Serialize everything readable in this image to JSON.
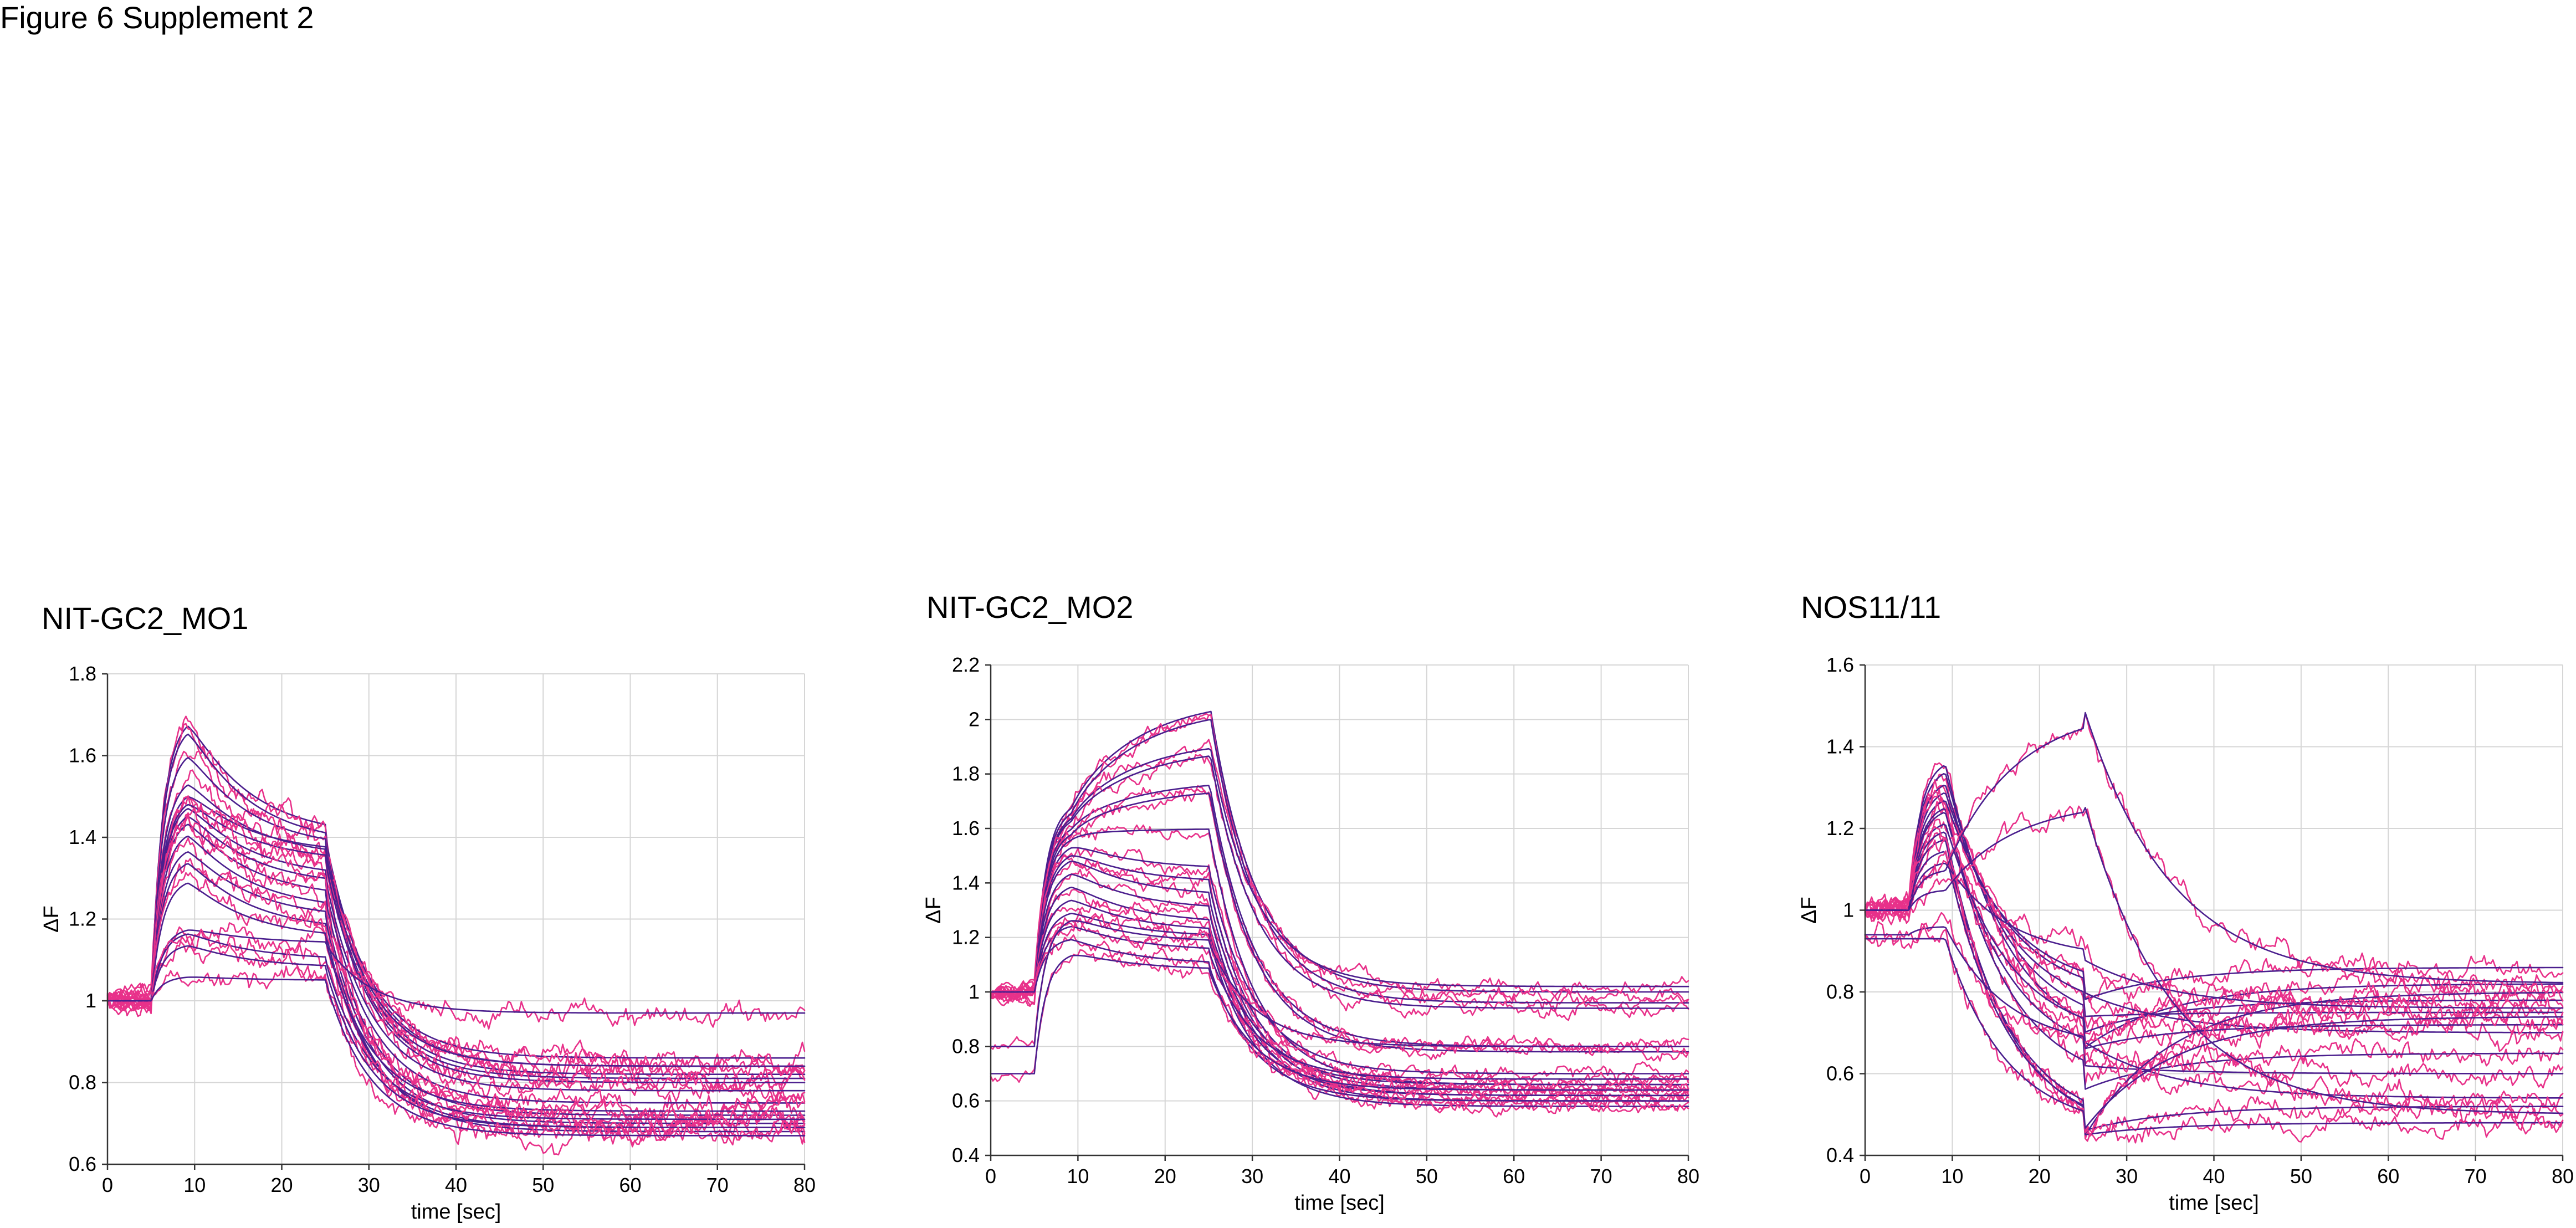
{
  "figure": {
    "title": "Figure 6 Supplement 2"
  },
  "colors": {
    "raw_trace": "#e8318a",
    "fit_trace": "#4b1f8e",
    "grid": "#d6d6d6",
    "axis": "#333333"
  },
  "chart_data": [
    {
      "type": "line",
      "title": "NIT-GC2_MO1",
      "xlabel": "time [sec]",
      "ylabel": "ΔF",
      "xlim": [
        0,
        80
      ],
      "ylim": [
        0.6,
        1.8
      ],
      "x_ticks": [
        0,
        10,
        20,
        30,
        40,
        50,
        60,
        70,
        80
      ],
      "y_ticks": [
        0.6,
        0.8,
        1,
        1.2,
        1.4,
        1.6,
        1.8
      ],
      "y_tick_labels": [
        "0.6",
        "0.8",
        "1",
        "1.2",
        "1.4",
        "1.6",
        "1.8"
      ],
      "grid": true,
      "legend": "none",
      "stimulus_window_sec": [
        5,
        25
      ],
      "traces": [
        {
          "baseline": 1.0,
          "peak": 1.7,
          "plateau": 1.4,
          "final": 0.84
        },
        {
          "baseline": 1.0,
          "peak": 1.68,
          "plateau": 1.38,
          "final": 0.86
        },
        {
          "baseline": 1.0,
          "peak": 1.62,
          "plateau": 1.37,
          "final": 0.82
        },
        {
          "baseline": 1.0,
          "peak": 1.55,
          "plateau": 1.35,
          "final": 0.81
        },
        {
          "baseline": 1.0,
          "peak": 1.52,
          "plateau": 1.36,
          "final": 0.84
        },
        {
          "baseline": 1.0,
          "peak": 1.5,
          "plateau": 1.34,
          "final": 0.8
        },
        {
          "baseline": 1.0,
          "peak": 1.49,
          "plateau": 1.3,
          "final": 0.78
        },
        {
          "baseline": 1.0,
          "peak": 1.47,
          "plateau": 1.28,
          "final": 0.75
        },
        {
          "baseline": 1.0,
          "peak": 1.45,
          "plateau": 1.25,
          "final": 0.72
        },
        {
          "baseline": 1.0,
          "peak": 1.42,
          "plateau": 1.22,
          "final": 0.7
        },
        {
          "baseline": 1.0,
          "peak": 1.38,
          "plateau": 1.2,
          "final": 0.68
        },
        {
          "baseline": 1.0,
          "peak": 1.35,
          "plateau": 1.17,
          "final": 0.69
        },
        {
          "baseline": 1.0,
          "peak": 1.3,
          "plateau": 1.15,
          "final": 0.73
        },
        {
          "baseline": 1.0,
          "peak": 1.18,
          "plateau": 1.14,
          "final": 0.97
        },
        {
          "baseline": 1.0,
          "peak": 1.17,
          "plateau": 1.1,
          "final": 0.71
        },
        {
          "baseline": 1.0,
          "peak": 1.14,
          "plateau": 1.08,
          "final": 0.69
        },
        {
          "baseline": 1.0,
          "peak": 1.06,
          "plateau": 1.05,
          "final": 0.67
        }
      ]
    },
    {
      "type": "line",
      "title": "NIT-GC2_MO2",
      "xlabel": "time [sec]",
      "ylabel": "ΔF",
      "xlim": [
        0,
        80
      ],
      "ylim": [
        0.4,
        2.2
      ],
      "x_ticks": [
        0,
        10,
        20,
        30,
        40,
        50,
        60,
        70,
        80
      ],
      "y_ticks": [
        0.4,
        0.6,
        0.8,
        1,
        1.2,
        1.4,
        1.6,
        1.8,
        2,
        2.2
      ],
      "y_tick_labels": [
        "0.4",
        "0.6",
        "0.8",
        "1",
        "1.2",
        "1.4",
        "1.6",
        "1.8",
        "2",
        "2.2"
      ],
      "grid": true,
      "legend": "none",
      "stimulus_window_sec": [
        5,
        25
      ],
      "traces": [
        {
          "baseline": 1.0,
          "peak": 1.7,
          "plateau": 2.08,
          "final": 1.0
        },
        {
          "baseline": 1.0,
          "peak": 1.68,
          "plateau": 2.05,
          "final": 0.96
        },
        {
          "baseline": 1.0,
          "peak": 1.66,
          "plateau": 1.93,
          "final": 1.02
        },
        {
          "baseline": 1.0,
          "peak": 1.65,
          "plateau": 1.9,
          "final": 0.94
        },
        {
          "baseline": 1.0,
          "peak": 1.62,
          "plateau": 1.78,
          "final": 0.8
        },
        {
          "baseline": 1.0,
          "peak": 1.6,
          "plateau": 1.75,
          "final": 0.78
        },
        {
          "baseline": 1.0,
          "peak": 1.58,
          "plateau": 1.6,
          "final": 0.66
        },
        {
          "baseline": 1.0,
          "peak": 1.55,
          "plateau": 1.45,
          "final": 0.7
        },
        {
          "baseline": 1.0,
          "peak": 1.52,
          "plateau": 1.4,
          "final": 0.64
        },
        {
          "baseline": 1.0,
          "peak": 1.5,
          "plateau": 1.35,
          "final": 0.62
        },
        {
          "baseline": 1.0,
          "peak": 1.45,
          "plateau": 1.3,
          "final": 0.6
        },
        {
          "baseline": 1.0,
          "peak": 1.4,
          "plateau": 1.25,
          "final": 0.66
        },
        {
          "baseline": 1.0,
          "peak": 1.35,
          "plateau": 1.22,
          "final": 0.62
        },
        {
          "baseline": 1.0,
          "peak": 1.3,
          "plateau": 1.2,
          "final": 0.58
        },
        {
          "baseline": 1.0,
          "peak": 1.25,
          "plateau": 1.15,
          "final": 0.68
        },
        {
          "baseline": 1.0,
          "peak": 1.2,
          "plateau": 1.1,
          "final": 0.6
        },
        {
          "baseline": 0.7,
          "peak": 1.15,
          "plateau": 1.08,
          "final": 0.64
        },
        {
          "baseline": 0.8,
          "peak": 1.28,
          "plateau": 1.18,
          "final": 0.8
        }
      ]
    },
    {
      "type": "line",
      "title": "NOS11/11",
      "xlabel": "time [sec]",
      "ylabel": "ΔF",
      "xlim": [
        0,
        80
      ],
      "ylim": [
        0.4,
        1.6
      ],
      "x_ticks": [
        0,
        10,
        20,
        30,
        40,
        50,
        60,
        70,
        80
      ],
      "y_ticks": [
        0.4,
        0.6,
        0.8,
        1,
        1.2,
        1.4,
        1.6
      ],
      "y_tick_labels": [
        "0.4",
        "0.6",
        "0.8",
        "1",
        "1.2",
        "1.4",
        "1.6"
      ],
      "grid": true,
      "legend": "none",
      "stimulus_window_sec": [
        5,
        25
      ],
      "traces": [
        {
          "baseline": 1.0,
          "peak": 1.37,
          "plateau": 0.66,
          "final": 0.82
        },
        {
          "baseline": 1.0,
          "peak": 1.35,
          "plateau": 0.7,
          "final": 0.78
        },
        {
          "baseline": 1.0,
          "peak": 1.32,
          "plateau": 0.74,
          "final": 0.75
        },
        {
          "baseline": 1.0,
          "peak": 1.3,
          "plateau": 0.78,
          "final": 0.86
        },
        {
          "baseline": 1.0,
          "peak": 1.28,
          "plateau": 0.8,
          "final": 0.7
        },
        {
          "baseline": 1.0,
          "peak": 1.26,
          "plateau": 0.56,
          "final": 0.65
        },
        {
          "baseline": 1.0,
          "peak": 1.25,
          "plateau": 0.62,
          "final": 0.6
        },
        {
          "baseline": 1.0,
          "peak": 1.22,
          "plateau": 0.68,
          "final": 0.54
        },
        {
          "baseline": 1.0,
          "peak": 1.2,
          "plateau": 0.44,
          "final": 0.8
        },
        {
          "baseline": 1.0,
          "peak": 1.18,
          "plateau": 0.46,
          "final": 0.52
        },
        {
          "baseline": 1.0,
          "peak": 1.15,
          "plateau": 0.45,
          "final": 0.48
        },
        {
          "baseline": 1.0,
          "peak": 1.12,
          "plateau": 0.88,
          "final": 0.76
        },
        {
          "baseline": 1.0,
          "peak": 1.1,
          "plateau": 1.5,
          "final": 0.82
        },
        {
          "baseline": 1.0,
          "peak": 1.05,
          "plateau": 1.27,
          "final": 0.5
        },
        {
          "baseline": 0.94,
          "peak": 0.96,
          "plateau": 0.66,
          "final": 0.72
        },
        {
          "baseline": 0.93,
          "peak": 0.93,
          "plateau": 0.46,
          "final": 0.74
        }
      ]
    }
  ]
}
